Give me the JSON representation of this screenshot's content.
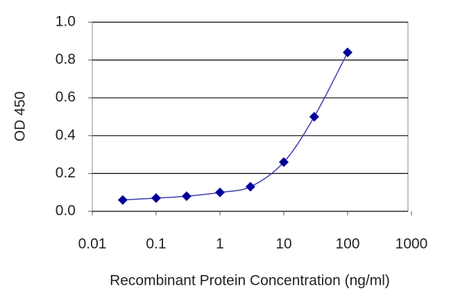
{
  "chart_data": {
    "type": "line",
    "y_label": "OD 450",
    "x_label": "Recombinant Protein Concentration (ng/ml)",
    "x": [
      0.03,
      0.1,
      0.3,
      1,
      3,
      10,
      30,
      100
    ],
    "series": [
      {
        "color": "#000099",
        "values": [
          0.06,
          0.07,
          0.08,
          0.1,
          0.13,
          0.26,
          0.5,
          0.84
        ]
      }
    ],
    "xlim": [
      0.01,
      1000
    ],
    "xticks": [
      0.01,
      0.1,
      1,
      10,
      100,
      1000
    ],
    "xscale": "log",
    "ylim": [
      0,
      1
    ],
    "yticks": [
      {
        "value": 0,
        "label": "0.0"
      },
      0.2,
      0.4,
      0.6,
      0.8,
      {
        "value": 1,
        "label": "1.0"
      }
    ],
    "grid": true
  }
}
